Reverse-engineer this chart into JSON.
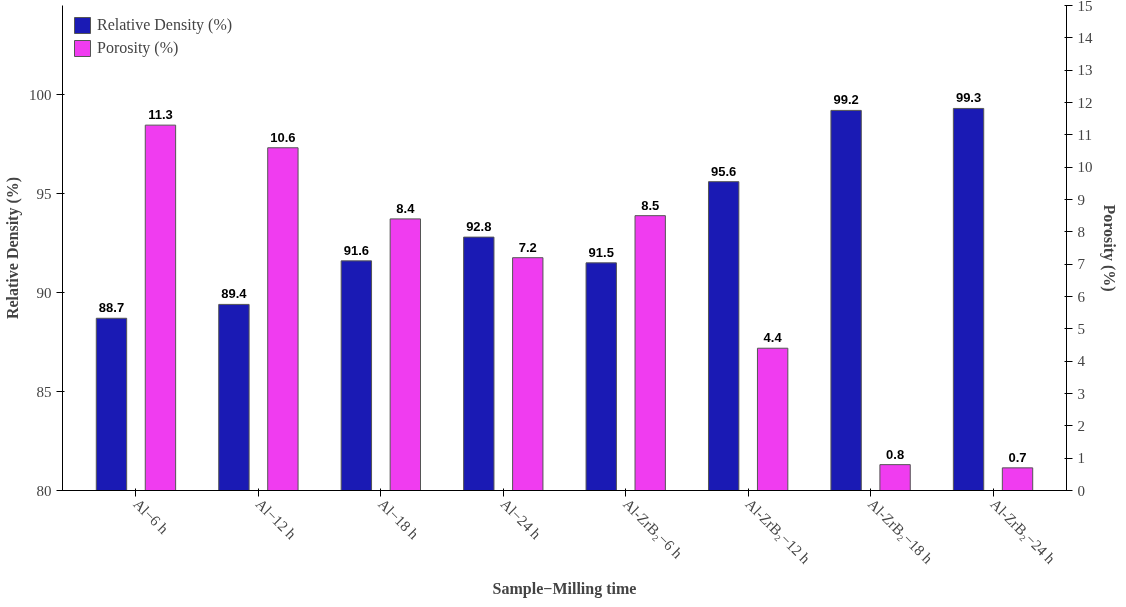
{
  "chart_data": {
    "type": "bar",
    "xlabel": "Sample−Milling time",
    "ylabel": "Relative Density (%)",
    "y2label": "Porosity (%)",
    "categories": [
      "Al−6 h",
      "Al−12 h",
      "Al−18 h",
      "Al−24 h",
      "Al-ZrB₂−6 h",
      "Al-ZrB₂−12 h",
      "Al-ZrB₂−18 h",
      "Al-ZrB₂−24 h"
    ],
    "series": [
      {
        "name": "Relative Density (%)",
        "color": "#1a1ab4",
        "values": [
          88.7,
          89.4,
          91.6,
          92.8,
          91.5,
          95.6,
          99.2,
          99.3
        ]
      },
      {
        "name": "Porosity (%)",
        "color": "#f03cf0",
        "axis": "y2",
        "values": [
          11.3,
          10.6,
          8.4,
          7.2,
          8.5,
          4.4,
          0.8,
          0.7
        ]
      }
    ],
    "ylim": [
      80,
      104.5
    ],
    "yticks": [
      80,
      85,
      90,
      95,
      100
    ],
    "y2lim": [
      0,
      15
    ],
    "y2ticks": [
      0,
      1,
      2,
      3,
      4,
      5,
      6,
      7,
      8,
      9,
      10,
      11,
      12,
      13,
      14,
      15
    ],
    "data_labels": true,
    "legend": "top left",
    "grid": false
  }
}
